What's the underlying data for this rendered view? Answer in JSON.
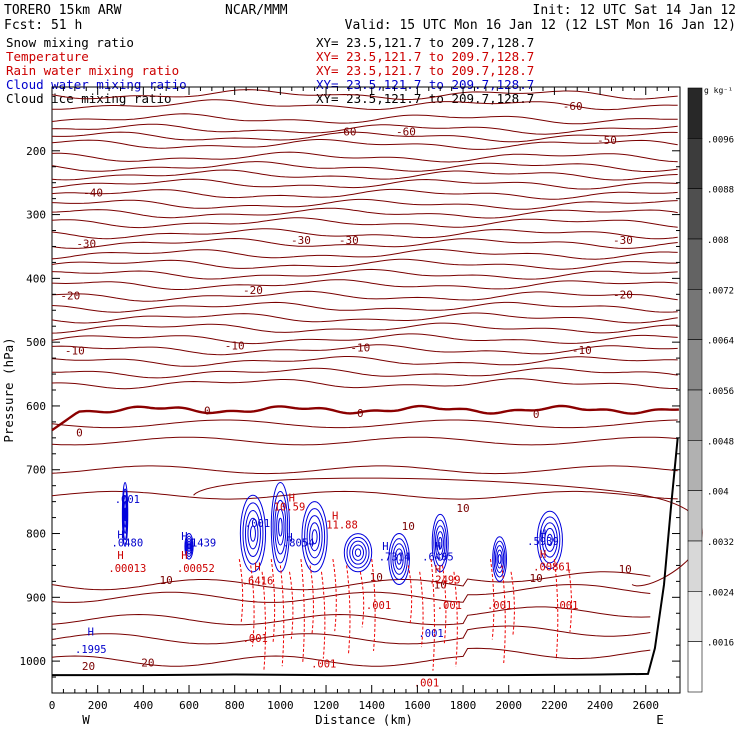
{
  "header": {
    "model": "TORERO  15km ARW",
    "org": "NCAR/MMM",
    "init": "Init: 12 UTC Sat 14 Jan 12",
    "fcst": "Fcst:   51 h",
    "valid": "Valid: 15 UTC Mon 16 Jan 12 (12 LST Mon 16 Jan 12)"
  },
  "fields": [
    {
      "label": "Snow mixing ratio",
      "xy": "XY=  23.5,121.7 to 209.7,128.7",
      "color": "#000000"
    },
    {
      "label": "Temperature",
      "xy": "XY=  23.5,121.7 to 209.7,128.7",
      "color": "#cc0000"
    },
    {
      "label": "Rain water mixing ratio",
      "xy": "XY=  23.5,121.7 to 209.7,128.7",
      "color": "#cc0000"
    },
    {
      "label": "Cloud water mixing ratio",
      "xy": "XY=  23.5,121.7 to 209.7,128.7",
      "color": "#0000cc"
    },
    {
      "label": "Cloud ice mixing ratio",
      "xy": "XY=  23.5,121.7 to 209.7,128.7",
      "color": "#000000"
    }
  ],
  "colors": {
    "temperature": "#7a0000",
    "freezing": "#8b0000",
    "rain": "#ee0000",
    "cloud_water": "#0000dd",
    "terrain": "#000000"
  },
  "chart_data": {
    "type": "cross-section contour",
    "xlabel": "Distance (km)",
    "ylabel": "Pressure (hPa)",
    "xlim": [
      0,
      2750
    ],
    "ylim": [
      1050,
      100
    ],
    "x_ticks": [
      0,
      200,
      400,
      600,
      800,
      1000,
      1200,
      1400,
      1600,
      1800,
      2000,
      2200,
      2400,
      2600
    ],
    "y_ticks": [
      200,
      300,
      400,
      500,
      600,
      700,
      800,
      900,
      1000
    ],
    "end_labels": {
      "left": "W",
      "right": "E"
    },
    "colorbar": {
      "unit": "g kg⁻¹",
      "ticks": [
        ".0096",
        ".0088",
        ".008",
        ".0072",
        ".0064",
        ".0056",
        ".0048",
        ".004",
        ".0032",
        ".0024",
        ".0016"
      ]
    },
    "temperature_contours": [
      {
        "label": "-60",
        "positions": [
          [
            1290,
            170
          ],
          [
            1550,
            170
          ],
          [
            2280,
            130
          ]
        ]
      },
      {
        "label": "-50",
        "positions": [
          [
            2430,
            183
          ]
        ]
      },
      {
        "label": "-40",
        "positions": [
          [
            180,
            265
          ]
        ]
      },
      {
        "label": "-30",
        "positions": [
          [
            150,
            345
          ],
          [
            1090,
            340
          ],
          [
            1300,
            340
          ],
          [
            2500,
            340
          ]
        ]
      },
      {
        "label": "-20",
        "positions": [
          [
            80,
            427
          ],
          [
            880,
            418
          ],
          [
            2500,
            425
          ]
        ]
      },
      {
        "label": "-10",
        "positions": [
          [
            100,
            513
          ],
          [
            800,
            505
          ],
          [
            1350,
            508
          ],
          [
            2320,
            512
          ]
        ]
      },
      {
        "label": "0",
        "positions": [
          [
            680,
            607
          ],
          [
            1350,
            611
          ],
          [
            2120,
            613
          ],
          [
            120,
            642
          ]
        ]
      },
      {
        "label": "10",
        "positions": [
          [
            1800,
            760
          ],
          [
            1560,
            788
          ],
          [
            2510,
            856
          ],
          [
            1420,
            868
          ],
          [
            1700,
            880
          ],
          [
            2120,
            870
          ],
          [
            500,
            873
          ]
        ]
      },
      {
        "label": "20",
        "positions": [
          [
            160,
            1008
          ],
          [
            420,
            1002
          ]
        ]
      }
    ],
    "cloud_water_labels": [
      {
        "text": ".001",
        "x": 330,
        "y": 752
      },
      {
        "text": ".001",
        "x": 900,
        "y": 790
      },
      {
        "text": ".0480",
        "x": 330,
        "y": 820
      },
      {
        "text": ".1439",
        "x": 650,
        "y": 820
      },
      {
        "text": ".8054",
        "x": 1080,
        "y": 820
      },
      {
        "text": ".7314",
        "x": 1500,
        "y": 842
      },
      {
        "text": ".6405",
        "x": 1690,
        "y": 842
      },
      {
        "text": ".5939",
        "x": 2150,
        "y": 818
      },
      {
        "text": ".1995",
        "x": 170,
        "y": 987
      },
      {
        "text": ".001",
        "x": 1660,
        "y": 962
      }
    ],
    "rain_labels": [
      {
        "text": "10.59",
        "x": 1040,
        "y": 764
      },
      {
        "text": "11.88",
        "x": 1270,
        "y": 792
      },
      {
        "text": ".00013",
        "x": 330,
        "y": 860
      },
      {
        "text": ".00052",
        "x": 630,
        "y": 860
      },
      {
        "text": ".6416",
        "x": 900,
        "y": 880
      },
      {
        "text": ".2499",
        "x": 1720,
        "y": 878
      },
      {
        "text": ".00861",
        "x": 2190,
        "y": 858
      },
      {
        "text": ".001",
        "x": 1430,
        "y": 918
      },
      {
        "text": ".001",
        "x": 1740,
        "y": 918
      },
      {
        "text": ".001",
        "x": 1960,
        "y": 918
      },
      {
        "text": ".001",
        "x": 2250,
        "y": 918
      },
      {
        "text": ".001",
        "x": 890,
        "y": 970
      },
      {
        "text": ".001",
        "x": 1190,
        "y": 1010
      },
      {
        "text": ".001",
        "x": 1640,
        "y": 1040
      }
    ],
    "h_markers": [
      {
        "x": 300,
        "y": 808,
        "color": "#0000cc"
      },
      {
        "x": 300,
        "y": 840,
        "color": "#cc0000"
      },
      {
        "x": 580,
        "y": 810,
        "color": "#0000cc"
      },
      {
        "x": 580,
        "y": 840,
        "color": "#cc0000"
      },
      {
        "x": 1050,
        "y": 750,
        "color": "#cc0000"
      },
      {
        "x": 1040,
        "y": 812,
        "color": "#0000cc"
      },
      {
        "x": 900,
        "y": 858,
        "color": "#cc0000"
      },
      {
        "x": 1240,
        "y": 778,
        "color": "#cc0000"
      },
      {
        "x": 1460,
        "y": 826,
        "color": "#0000cc"
      },
      {
        "x": 1690,
        "y": 826,
        "color": "#0000cc"
      },
      {
        "x": 1690,
        "y": 862,
        "color": "#cc0000"
      },
      {
        "x": 2150,
        "y": 806,
        "color": "#0000cc"
      },
      {
        "x": 2150,
        "y": 838,
        "color": "#cc0000"
      },
      {
        "x": 170,
        "y": 960,
        "color": "#0000cc"
      }
    ],
    "terrain": [
      [
        0,
        1022
      ],
      [
        400,
        1022
      ],
      [
        800,
        1021
      ],
      [
        1200,
        1022
      ],
      [
        1600,
        1022
      ],
      [
        2000,
        1022
      ],
      [
        2400,
        1021
      ],
      [
        2610,
        1020
      ],
      [
        2640,
        980
      ],
      [
        2680,
        880
      ],
      [
        2710,
        760
      ],
      [
        2740,
        650
      ]
    ]
  }
}
